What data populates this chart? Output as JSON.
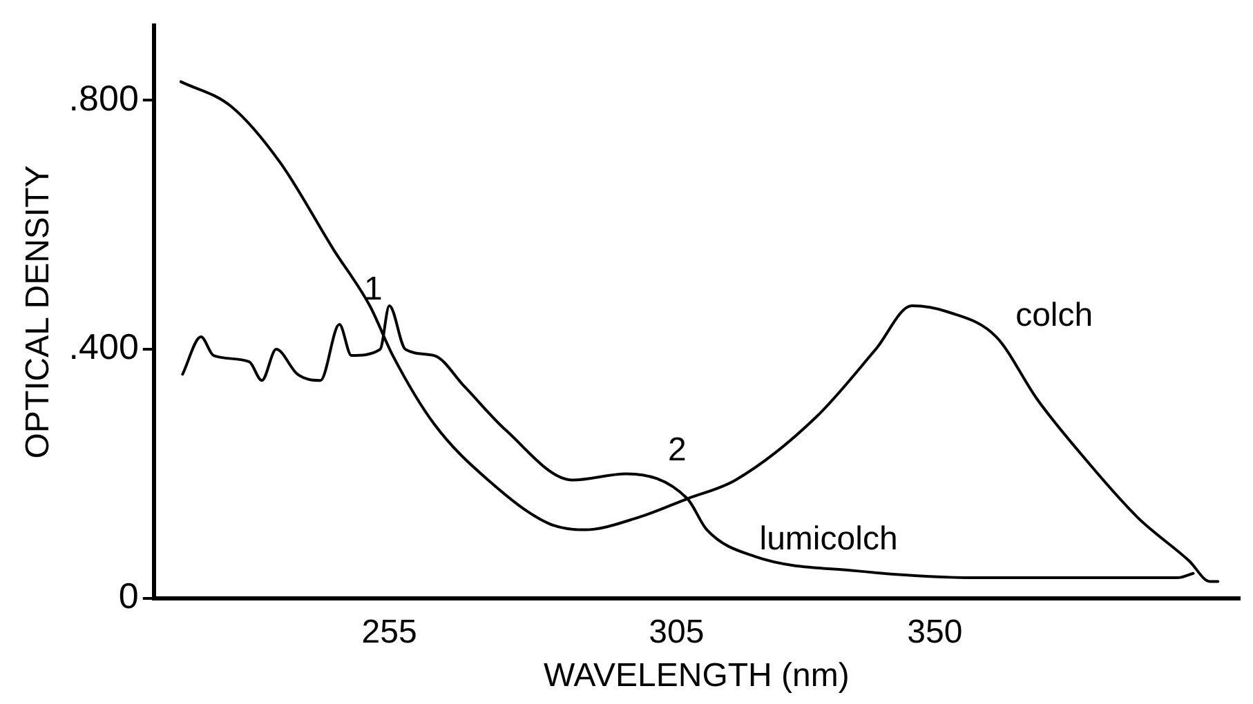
{
  "chart_data": {
    "type": "line",
    "xlabel": "WAVELENGTH (nm)",
    "ylabel": "OPTICAL DENSITY",
    "xlim": [
      214,
      403
    ],
    "xticks": [
      255,
      305,
      350
    ],
    "ylim": [
      0,
      0.92
    ],
    "yticks": [
      0,
      {
        "value": 0.4,
        "label": ".400"
      },
      {
        "value": 0.8,
        "label": ".800"
      }
    ],
    "grid": false,
    "legend": false,
    "marker": "none",
    "line_style": "solid",
    "series": [
      {
        "name": "colch",
        "color": "#000000",
        "x": [
          218.7,
          227.5,
          236,
          245.3,
          251.6,
          255.6,
          262.8,
          272.2,
          282.8,
          289,
          298.4,
          306.9,
          315.3,
          329.2,
          339.7,
          346,
          352.3,
          360.7,
          367.8,
          374.7,
          385.3,
          394.3,
          397.9,
          399.3
        ],
        "values": [
          0.83,
          0.79,
          0.7,
          0.56,
          0.47,
          0.39,
          0.28,
          0.19,
          0.12,
          0.11,
          0.13,
          0.16,
          0.19,
          0.29,
          0.4,
          0.47,
          0.46,
          0.42,
          0.32,
          0.24,
          0.13,
          0.06,
          0.027,
          0.027
        ]
      },
      {
        "name": "lumicolch",
        "color": "#000000",
        "x": [
          219,
          222.2,
          224.4,
          230.6,
          232.8,
          235.3,
          239,
          243,
          246.3,
          248.4,
          253.4,
          255,
          257.8,
          262.8,
          268.1,
          275.3,
          286.9,
          296.3,
          306.9,
          310.3,
          318.7,
          336.3,
          357.3,
          392.2,
          395
        ],
        "values": [
          0.36,
          0.42,
          0.39,
          0.38,
          0.35,
          0.4,
          0.36,
          0.35,
          0.44,
          0.39,
          0.4,
          0.47,
          0.4,
          0.39,
          0.34,
          0.27,
          0.19,
          0.2,
          0.16,
          0.11,
          0.067,
          0.044,
          0.033,
          0.033,
          0.04
        ]
      }
    ],
    "annotations": [
      "1",
      "2"
    ]
  }
}
